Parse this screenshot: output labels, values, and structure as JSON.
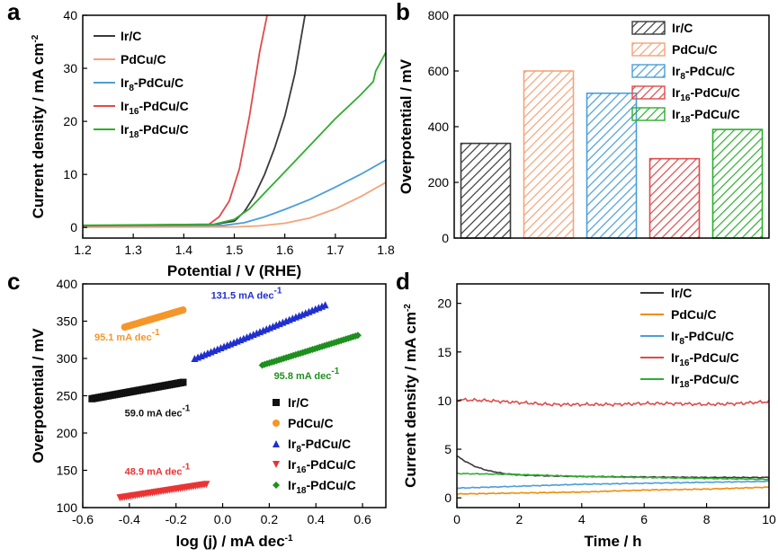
{
  "colors": {
    "ir_c": "#3a3a3a",
    "pdcu_c": "#f4a37a",
    "ir8": "#4a9ed8",
    "ir16": "#e04a4a",
    "ir18": "#2eae2e",
    "d_pdcu": "#f08c0a",
    "c_pdcu": "#f5962a",
    "c_ir8": "#1f2fd0",
    "c_ir16": "#ea3434",
    "c_ir18": "#1f8f1f",
    "c_ir_c": "#111111"
  },
  "chart_data": [
    {
      "id": "a",
      "panel_label": "a",
      "type": "line",
      "xlabel": "Potential / V (RHE)",
      "ylabel": "Current density / mA cm",
      "ylabel_sup": "-2",
      "xlim": [
        1.2,
        1.8
      ],
      "ylim": [
        -2,
        40
      ],
      "xticks": [
        "1.2",
        "1.3",
        "1.4",
        "1.5",
        "1.6",
        "1.7",
        "1.8"
      ],
      "yticks": [
        "0",
        "10",
        "20",
        "30",
        "40"
      ],
      "series": [
        {
          "name": "Ir/C",
          "main": "Ir/C",
          "sub": "",
          "tail": "",
          "color_key": "ir_c",
          "x": [
            1.2,
            1.45,
            1.5,
            1.52,
            1.54,
            1.56,
            1.58,
            1.6,
            1.62,
            1.64
          ],
          "y": [
            0.2,
            0.4,
            1.2,
            3,
            6,
            10,
            15,
            21,
            29,
            40
          ]
        },
        {
          "name": "PdCu/C",
          "main": "PdCu/C",
          "sub": "",
          "tail": "",
          "color_key": "pdcu_c",
          "x": [
            1.2,
            1.5,
            1.55,
            1.6,
            1.65,
            1.7,
            1.75,
            1.8
          ],
          "y": [
            0.05,
            0.1,
            0.3,
            0.8,
            1.8,
            3.5,
            5.8,
            8.5
          ]
        },
        {
          "name": "Ir8-PdCu/C",
          "main": "Ir",
          "sub": "8",
          "tail": "-PdCu/C",
          "color_key": "ir8",
          "x": [
            1.2,
            1.48,
            1.52,
            1.56,
            1.6,
            1.65,
            1.7,
            1.75,
            1.8
          ],
          "y": [
            0.3,
            0.4,
            0.9,
            2,
            3.4,
            5.3,
            7.6,
            10,
            12.7
          ]
        },
        {
          "name": "Ir16-PdCu/C",
          "main": "Ir",
          "sub": "16",
          "tail": "-PdCu/C",
          "color_key": "ir16",
          "x": [
            1.2,
            1.45,
            1.47,
            1.49,
            1.51,
            1.53,
            1.55,
            1.565
          ],
          "y": [
            0.3,
            0.6,
            2,
            5,
            11,
            21,
            33,
            40
          ]
        },
        {
          "name": "Ir18-PdCu/C",
          "main": "Ir",
          "sub": "18",
          "tail": "-PdCu/C",
          "color_key": "ir18",
          "x": [
            1.2,
            1.46,
            1.5,
            1.53,
            1.56,
            1.6,
            1.65,
            1.7,
            1.75,
            1.775,
            1.78,
            1.8
          ],
          "y": [
            0.4,
            0.6,
            1.5,
            3.5,
            6.5,
            10.5,
            15.5,
            20.5,
            25,
            27.5,
            29.5,
            33
          ]
        }
      ]
    },
    {
      "id": "b",
      "panel_label": "b",
      "type": "bar",
      "xlabel": "",
      "ylabel": "Overpotential / mV",
      "ylim": [
        0,
        800
      ],
      "yticks": [
        "0",
        "200",
        "400",
        "600",
        "800"
      ],
      "categories": [
        "Ir/C",
        "PdCu/C",
        "Ir8-PdCu/C",
        "Ir16-PdCu/C",
        "Ir18-PdCu/C"
      ],
      "values": [
        340,
        600,
        520,
        285,
        390
      ],
      "legend": [
        {
          "main": "Ir/C",
          "sub": "",
          "tail": "",
          "color_key": "ir_c"
        },
        {
          "main": "PdCu/C",
          "sub": "",
          "tail": "",
          "color_key": "pdcu_c"
        },
        {
          "main": "Ir",
          "sub": "8",
          "tail": "-PdCu/C",
          "color_key": "ir8"
        },
        {
          "main": "Ir",
          "sub": "16",
          "tail": "-PdCu/C",
          "color_key": "ir16"
        },
        {
          "main": "Ir",
          "sub": "18",
          "tail": "-PdCu/C",
          "color_key": "ir18"
        }
      ]
    },
    {
      "id": "c",
      "panel_label": "c",
      "type": "scatter",
      "xlabel": "log (j) / mA dec",
      "xlabel_sup": "-1",
      "ylabel": "Overpotential / mV",
      "xlim": [
        -0.6,
        0.7
      ],
      "ylim": [
        100,
        400
      ],
      "xticks": [
        "-0.6",
        "-0.4",
        "-0.2",
        "0.0",
        "0.2",
        "0.4",
        "0.6"
      ],
      "yticks": [
        "100",
        "150",
        "200",
        "250",
        "300",
        "350",
        "400"
      ],
      "series": [
        {
          "name": "Ir/C",
          "main": "Ir/C",
          "sub": "",
          "tail": "",
          "marker": "square",
          "color_key": "c_ir_c",
          "x0": -0.56,
          "x1": -0.17,
          "y0": 246,
          "y1": 268,
          "slope_label": "59.0 mA dec",
          "slope_sup": "-1"
        },
        {
          "name": "PdCu/C",
          "main": "PdCu/C",
          "sub": "",
          "tail": "",
          "marker": "circle",
          "color_key": "c_pdcu",
          "x0": -0.42,
          "x1": -0.17,
          "y0": 342,
          "y1": 365,
          "slope_label": "95.1 mA dec",
          "slope_sup": "-1"
        },
        {
          "name": "Ir8-PdCu/C",
          "main": "Ir",
          "sub": "8",
          "tail": "-PdCu/C",
          "marker": "triangle-up",
          "color_key": "c_ir8",
          "x0": -0.12,
          "x1": 0.44,
          "y0": 300,
          "y1": 372,
          "slope_label": "131.5 mA dec",
          "slope_sup": "-1"
        },
        {
          "name": "Ir16-PdCu/C",
          "main": "Ir",
          "sub": "16",
          "tail": "-PdCu/C",
          "marker": "triangle-down",
          "color_key": "c_ir16",
          "x0": -0.44,
          "x1": -0.07,
          "y0": 113,
          "y1": 131,
          "slope_label": "48.9 mA dec",
          "slope_sup": "-1"
        },
        {
          "name": "Ir18-PdCu/C",
          "main": "Ir",
          "sub": "18",
          "tail": "-PdCu/C",
          "marker": "diamond",
          "color_key": "c_ir18",
          "x0": 0.17,
          "x1": 0.58,
          "y0": 291,
          "y1": 331,
          "slope_label": "95.8 mA dec",
          "slope_sup": "-1"
        }
      ]
    },
    {
      "id": "d",
      "panel_label": "d",
      "type": "line",
      "xlabel": "Time / h",
      "ylabel": "Current density / mA cm",
      "ylabel_sup": "-2",
      "xlim": [
        0,
        10
      ],
      "ylim": [
        -1,
        22
      ],
      "xticks": [
        "0",
        "2",
        "4",
        "6",
        "8",
        "10"
      ],
      "yticks": [
        "0",
        "5",
        "10",
        "15",
        "20"
      ],
      "series": [
        {
          "name": "Ir/C",
          "main": "Ir/C",
          "sub": "",
          "tail": "",
          "color_key": "ir_c",
          "x": [
            0,
            0.3,
            0.6,
            1,
            1.5,
            2,
            3,
            4,
            6,
            8,
            10
          ],
          "y": [
            4.3,
            3.7,
            3.2,
            2.8,
            2.5,
            2.35,
            2.25,
            2.2,
            2.15,
            2.1,
            2.1
          ]
        },
        {
          "name": "PdCu/C",
          "main": "PdCu/C",
          "sub": "",
          "tail": "",
          "color_key": "d_pdcu",
          "x": [
            0,
            2,
            4,
            6,
            8,
            10
          ],
          "y": [
            0.4,
            0.5,
            0.6,
            0.8,
            0.9,
            1.1
          ]
        },
        {
          "name": "Ir8-PdCu/C",
          "main": "Ir",
          "sub": "8",
          "tail": "-PdCu/C",
          "color_key": "ir8",
          "x": [
            0,
            2,
            4,
            6,
            8,
            10
          ],
          "y": [
            1.0,
            1.2,
            1.4,
            1.5,
            1.6,
            1.7
          ]
        },
        {
          "name": "Ir16-PdCu/C",
          "main": "Ir",
          "sub": "16",
          "tail": "-PdCu/C",
          "color_key": "ir16",
          "x": [
            0,
            1,
            2,
            3,
            4,
            5,
            6,
            7,
            8,
            9,
            10
          ],
          "y": [
            10.1,
            10.0,
            9.8,
            9.6,
            9.6,
            9.6,
            9.7,
            9.7,
            9.6,
            9.7,
            9.9
          ]
        },
        {
          "name": "Ir18-PdCu/C",
          "main": "Ir",
          "sub": "18",
          "tail": "-PdCu/C",
          "color_key": "ir18",
          "x": [
            0,
            1,
            2,
            3,
            4,
            6,
            8,
            10
          ],
          "y": [
            2.5,
            2.45,
            2.4,
            2.3,
            2.2,
            2.1,
            2.0,
            1.9
          ]
        }
      ]
    }
  ]
}
